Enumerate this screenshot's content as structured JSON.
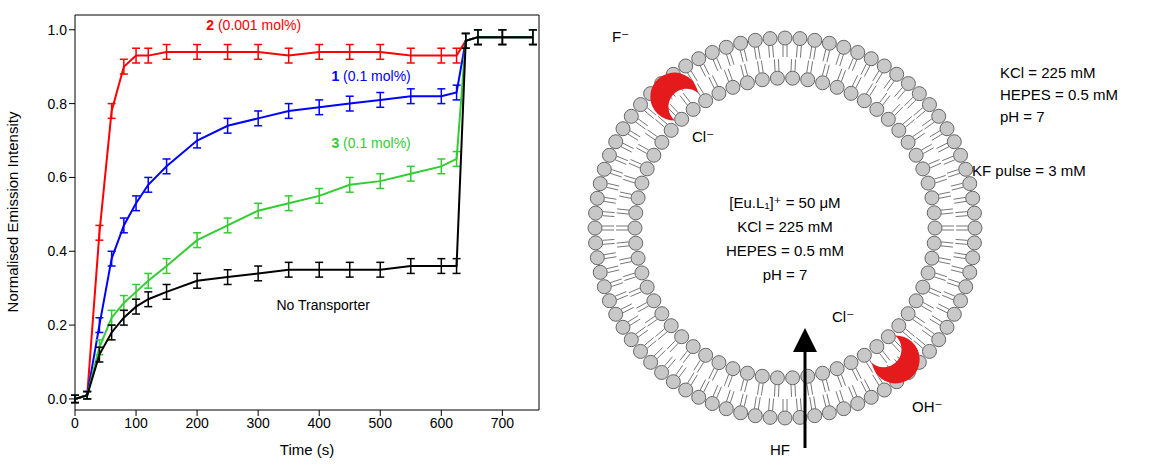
{
  "chart_data": {
    "type": "line",
    "x_label": "Time (s)",
    "y_label": "Normalised Emission Intensity",
    "x": [
      0,
      20,
      40,
      60,
      80,
      100,
      120,
      150,
      200,
      250,
      300,
      350,
      400,
      450,
      500,
      550,
      600,
      625,
      640,
      660,
      700,
      750
    ],
    "xlim": [
      0,
      760
    ],
    "xticks": [
      0,
      100,
      200,
      300,
      400,
      500,
      600,
      700
    ],
    "ylim": [
      -0.03,
      1.04
    ],
    "yticks": [
      {
        "value": 0,
        "label": "0.0"
      },
      0.2,
      0.4,
      0.6,
      0.8,
      {
        "value": 1,
        "label": "1.0"
      }
    ],
    "grid": false,
    "series": [
      {
        "name": "2 (0.001 mol%)",
        "color": "#ff0000",
        "values": [
          0,
          0.01,
          0.45,
          0.78,
          0.9,
          0.93,
          0.93,
          0.94,
          0.94,
          0.94,
          0.94,
          0.93,
          0.94,
          0.94,
          0.94,
          0.93,
          0.93,
          0.93,
          0.97,
          0.98,
          0.98,
          0.98
        ],
        "errors": [
          0.01,
          0.01,
          0.02,
          0.02,
          0.02,
          0.02,
          0.02,
          0.02,
          0.02,
          0.02,
          0.02,
          0.02,
          0.02,
          0.02,
          0.02,
          0.02,
          0.02,
          0.02,
          0.02,
          0.02,
          0.02,
          0.02
        ]
      },
      {
        "name": "1 (0.1 mol%)",
        "color": "#0000ff",
        "values": [
          0,
          0.01,
          0.2,
          0.38,
          0.47,
          0.53,
          0.58,
          0.63,
          0.7,
          0.74,
          0.76,
          0.78,
          0.79,
          0.8,
          0.81,
          0.82,
          0.82,
          0.83,
          0.97,
          0.98,
          0.98,
          0.98
        ],
        "errors": [
          0.01,
          0.01,
          0.02,
          0.02,
          0.02,
          0.02,
          0.02,
          0.02,
          0.02,
          0.02,
          0.02,
          0.02,
          0.02,
          0.02,
          0.02,
          0.02,
          0.02,
          0.02,
          0.02,
          0.02,
          0.02,
          0.02
        ]
      },
      {
        "name": "3 (0.1 mol%)",
        "color": "#33cc33",
        "values": [
          0,
          0.01,
          0.14,
          0.22,
          0.26,
          0.29,
          0.32,
          0.36,
          0.43,
          0.47,
          0.51,
          0.53,
          0.55,
          0.58,
          0.59,
          0.61,
          0.63,
          0.65,
          0.97,
          0.98,
          0.98,
          0.98
        ],
        "errors": [
          0.01,
          0.01,
          0.02,
          0.02,
          0.02,
          0.02,
          0.02,
          0.02,
          0.02,
          0.02,
          0.02,
          0.02,
          0.02,
          0.02,
          0.02,
          0.02,
          0.02,
          0.02,
          0.02,
          0.02,
          0.02,
          0.02
        ]
      },
      {
        "name": "No Transporter",
        "color": "#000000",
        "values": [
          0,
          0.01,
          0.12,
          0.18,
          0.22,
          0.25,
          0.27,
          0.29,
          0.32,
          0.33,
          0.34,
          0.35,
          0.35,
          0.35,
          0.35,
          0.36,
          0.36,
          0.36,
          0.97,
          0.98,
          0.98,
          0.98
        ],
        "errors": [
          0.01,
          0.01,
          0.02,
          0.02,
          0.02,
          0.02,
          0.02,
          0.02,
          0.02,
          0.02,
          0.02,
          0.02,
          0.02,
          0.02,
          0.02,
          0.02,
          0.02,
          0.02,
          0.02,
          0.02,
          0.02,
          0.02
        ]
      }
    ]
  },
  "diagram": {
    "inside": [
      "[Eu.L₁]⁺ = 50 μM",
      "KCl = 225 mM",
      "HEPES = 0.5 mM",
      "pH = 7"
    ],
    "outside": [
      "KCl = 225 mM",
      "HEPES = 0.5 mM",
      "pH = 7"
    ],
    "pulse": "KF pulse = 3 mM",
    "transporter_1": {
      "outside": "F⁻",
      "inside": "Cl⁻"
    },
    "transporter_2": {
      "inside": "Cl⁻",
      "outside": "OH⁻"
    },
    "flux": "HF"
  }
}
